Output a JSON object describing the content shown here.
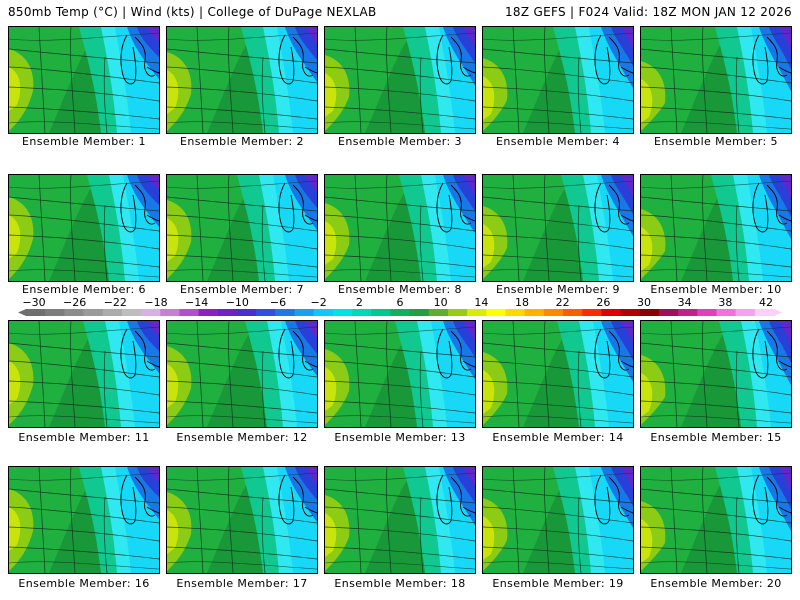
{
  "header": {
    "left": "850mb Temp (°C) | Wind (kts) | College of DuPage NEXLAB",
    "right": "18Z GEFS | F024 Valid: 18Z MON JAN 12 2026"
  },
  "members": [
    {
      "label": "Ensemble Member: 1"
    },
    {
      "label": "Ensemble Member: 2"
    },
    {
      "label": "Ensemble Member: 3"
    },
    {
      "label": "Ensemble Member: 4"
    },
    {
      "label": "Ensemble Member: 5"
    },
    {
      "label": "Ensemble Member: 6"
    },
    {
      "label": "Ensemble Member: 7"
    },
    {
      "label": "Ensemble Member: 8"
    },
    {
      "label": "Ensemble Member: 9"
    },
    {
      "label": "Ensemble Member: 10"
    },
    {
      "label": "Ensemble Member: 11"
    },
    {
      "label": "Ensemble Member: 12"
    },
    {
      "label": "Ensemble Member: 13"
    },
    {
      "label": "Ensemble Member: 14"
    },
    {
      "label": "Ensemble Member: 15"
    },
    {
      "label": "Ensemble Member: 16"
    },
    {
      "label": "Ensemble Member: 17"
    },
    {
      "label": "Ensemble Member: 18"
    },
    {
      "label": "Ensemble Member: 19"
    },
    {
      "label": "Ensemble Member: 20"
    }
  ],
  "colorbar": {
    "ticks": [
      "−30",
      "−26",
      "−22",
      "−18",
      "−14",
      "−10",
      "−6",
      "−2",
      "2",
      "6",
      "10",
      "14",
      "18",
      "22",
      "26",
      "30",
      "34",
      "38",
      "42"
    ],
    "colors": [
      "#6f6f6f",
      "#7d7d7d",
      "#8c8c8c",
      "#9b9b9b",
      "#ababab",
      "#bdbdbd",
      "#d9b0e6",
      "#c77fd6",
      "#b34fcc",
      "#8f20c0",
      "#7020c8",
      "#4a2fd0",
      "#2f50e0",
      "#1e78e8",
      "#18a0f0",
      "#10c8f8",
      "#00e0e8",
      "#00d8b8",
      "#00c890",
      "#10b060",
      "#20a040",
      "#5fae2a",
      "#9acc14",
      "#d8ec08",
      "#ffff00",
      "#ffd800",
      "#ffb000",
      "#ff8800",
      "#ff5c00",
      "#ff2a00",
      "#e00000",
      "#b40000",
      "#8c0000",
      "#a0105a",
      "#c0208c",
      "#e040c0",
      "#f070e0",
      "#f8a0f0",
      "#fcd0f8"
    ]
  },
  "colors": {
    "cyan": "#18d8f8",
    "light_cyan": "#30e8f0",
    "teal_green": "#10c890",
    "green": "#20b040",
    "dark_green": "#189838",
    "yellow_green": "#8ccc14",
    "yellow": "#c8e40c",
    "blue": "#1878e8",
    "dark_blue": "#2840d8",
    "purple": "#6028c8",
    "magenta": "#9020c0"
  }
}
